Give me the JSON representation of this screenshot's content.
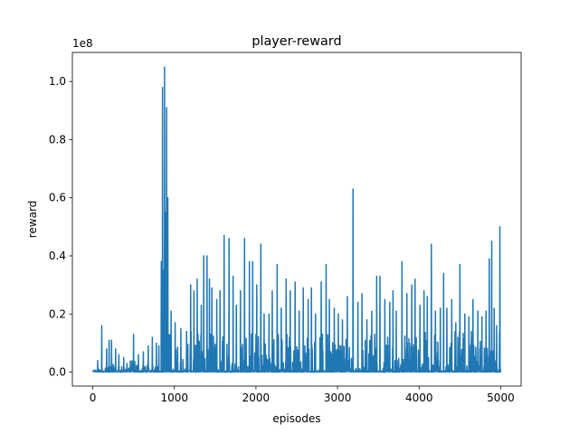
{
  "chart_data": {
    "type": "line",
    "title": "player-reward",
    "xlabel": "episodes",
    "ylabel": "reward",
    "y_offset_text": "1e8",
    "xlim": [
      -250,
      5250
    ],
    "ylim": [
      -0.048,
      1.1
    ],
    "x_ticks": [
      0,
      1000,
      2000,
      3000,
      4000,
      5000
    ],
    "y_ticks": [
      0.0,
      0.2,
      0.4,
      0.6,
      0.8,
      1.0
    ],
    "y_tick_labels": [
      "0.0",
      "0.2",
      "0.4",
      "0.6",
      "0.8",
      "1.0"
    ],
    "grid": false,
    "series": [
      {
        "color": "#1f77b4",
        "x_start": 0,
        "x_end": 5000,
        "baseline_max": 0.02,
        "note_values_scale": "values in units of 1e8",
        "spikes": [
          {
            "x": 60,
            "y": 0.04
          },
          {
            "x": 110,
            "y": 0.16
          },
          {
            "x": 170,
            "y": 0.08
          },
          {
            "x": 200,
            "y": 0.11
          },
          {
            "x": 230,
            "y": 0.11
          },
          {
            "x": 280,
            "y": 0.08
          },
          {
            "x": 320,
            "y": 0.06
          },
          {
            "x": 380,
            "y": 0.05
          },
          {
            "x": 420,
            "y": 0.03
          },
          {
            "x": 500,
            "y": 0.13
          },
          {
            "x": 560,
            "y": 0.06
          },
          {
            "x": 620,
            "y": 0.07
          },
          {
            "x": 680,
            "y": 0.09
          },
          {
            "x": 730,
            "y": 0.12
          },
          {
            "x": 780,
            "y": 0.1
          },
          {
            "x": 840,
            "y": 0.38
          },
          {
            "x": 855,
            "y": 0.98
          },
          {
            "x": 870,
            "y": 0.35
          },
          {
            "x": 880,
            "y": 1.05
          },
          {
            "x": 895,
            "y": 0.55
          },
          {
            "x": 905,
            "y": 0.91
          },
          {
            "x": 920,
            "y": 0.6
          },
          {
            "x": 960,
            "y": 0.21
          },
          {
            "x": 1010,
            "y": 0.17
          },
          {
            "x": 1080,
            "y": 0.15
          },
          {
            "x": 1150,
            "y": 0.14
          },
          {
            "x": 1200,
            "y": 0.3
          },
          {
            "x": 1240,
            "y": 0.28
          },
          {
            "x": 1280,
            "y": 0.32
          },
          {
            "x": 1330,
            "y": 0.23
          },
          {
            "x": 1360,
            "y": 0.4
          },
          {
            "x": 1400,
            "y": 0.4
          },
          {
            "x": 1430,
            "y": 0.32
          },
          {
            "x": 1460,
            "y": 0.29
          },
          {
            "x": 1520,
            "y": 0.25
          },
          {
            "x": 1560,
            "y": 0.28
          },
          {
            "x": 1610,
            "y": 0.47
          },
          {
            "x": 1670,
            "y": 0.46
          },
          {
            "x": 1720,
            "y": 0.33
          },
          {
            "x": 1760,
            "y": 0.23
          },
          {
            "x": 1810,
            "y": 0.28
          },
          {
            "x": 1860,
            "y": 0.46
          },
          {
            "x": 1920,
            "y": 0.38
          },
          {
            "x": 1960,
            "y": 0.38
          },
          {
            "x": 2010,
            "y": 0.3
          },
          {
            "x": 2060,
            "y": 0.44
          },
          {
            "x": 2100,
            "y": 0.2
          },
          {
            "x": 2160,
            "y": 0.2
          },
          {
            "x": 2200,
            "y": 0.28
          },
          {
            "x": 2260,
            "y": 0.37
          },
          {
            "x": 2310,
            "y": 0.22
          },
          {
            "x": 2370,
            "y": 0.32
          },
          {
            "x": 2420,
            "y": 0.28
          },
          {
            "x": 2480,
            "y": 0.31
          },
          {
            "x": 2530,
            "y": 0.21
          },
          {
            "x": 2580,
            "y": 0.29
          },
          {
            "x": 2640,
            "y": 0.25
          },
          {
            "x": 2680,
            "y": 0.29
          },
          {
            "x": 2730,
            "y": 0.2
          },
          {
            "x": 2800,
            "y": 0.31
          },
          {
            "x": 2860,
            "y": 0.37
          },
          {
            "x": 2900,
            "y": 0.25
          },
          {
            "x": 2960,
            "y": 0.22
          },
          {
            "x": 3010,
            "y": 0.2
          },
          {
            "x": 3060,
            "y": 0.18
          },
          {
            "x": 3120,
            "y": 0.26
          },
          {
            "x": 3190,
            "y": 0.63
          },
          {
            "x": 3250,
            "y": 0.24
          },
          {
            "x": 3300,
            "y": 0.27
          },
          {
            "x": 3360,
            "y": 0.18
          },
          {
            "x": 3420,
            "y": 0.21
          },
          {
            "x": 3480,
            "y": 0.33
          },
          {
            "x": 3520,
            "y": 0.33
          },
          {
            "x": 3580,
            "y": 0.25
          },
          {
            "x": 3640,
            "y": 0.24
          },
          {
            "x": 3680,
            "y": 0.28
          },
          {
            "x": 3720,
            "y": 0.21
          },
          {
            "x": 3790,
            "y": 0.38
          },
          {
            "x": 3850,
            "y": 0.27
          },
          {
            "x": 3910,
            "y": 0.3
          },
          {
            "x": 3950,
            "y": 0.32
          },
          {
            "x": 4010,
            "y": 0.23
          },
          {
            "x": 4060,
            "y": 0.28
          },
          {
            "x": 4100,
            "y": 0.26
          },
          {
            "x": 4150,
            "y": 0.44
          },
          {
            "x": 4200,
            "y": 0.21
          },
          {
            "x": 4260,
            "y": 0.22
          },
          {
            "x": 4300,
            "y": 0.34
          },
          {
            "x": 4340,
            "y": 0.22
          },
          {
            "x": 4400,
            "y": 0.25
          },
          {
            "x": 4450,
            "y": 0.17
          },
          {
            "x": 4500,
            "y": 0.37
          },
          {
            "x": 4560,
            "y": 0.2
          },
          {
            "x": 4610,
            "y": 0.19
          },
          {
            "x": 4660,
            "y": 0.25
          },
          {
            "x": 4720,
            "y": 0.21
          },
          {
            "x": 4770,
            "y": 0.19
          },
          {
            "x": 4820,
            "y": 0.21
          },
          {
            "x": 4860,
            "y": 0.39
          },
          {
            "x": 4890,
            "y": 0.45
          },
          {
            "x": 4920,
            "y": 0.22
          },
          {
            "x": 4950,
            "y": 0.16
          },
          {
            "x": 4990,
            "y": 0.5
          }
        ]
      }
    ]
  }
}
